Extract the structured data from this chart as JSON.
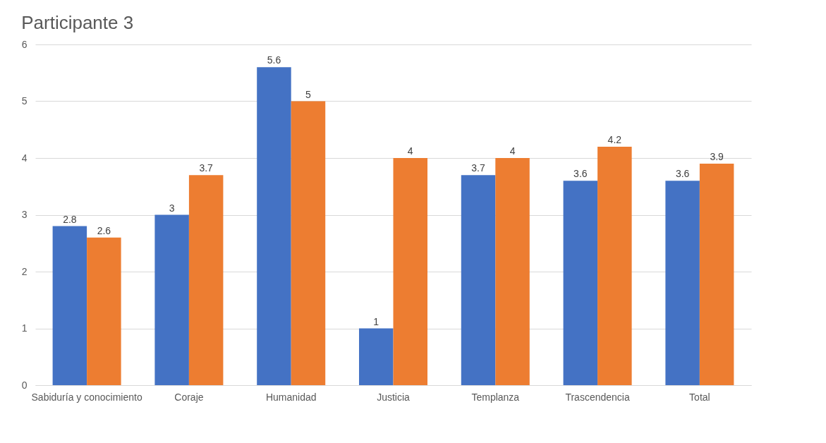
{
  "chart_data": {
    "type": "bar",
    "title": "Participante 3",
    "categories": [
      "Sabiduría y conocimiento",
      "Coraje",
      "Humanidad",
      "Justicia",
      "Templanza",
      "Trascendencia",
      "Total"
    ],
    "series": [
      {
        "color": "#4472c4",
        "values": [
          2.8,
          3,
          5.6,
          1,
          3.7,
          3.6,
          3.6
        ]
      },
      {
        "color": "#ed7d31",
        "values": [
          2.6,
          3.7,
          5,
          4,
          4,
          4.2,
          3.9
        ]
      }
    ],
    "ylim": [
      0,
      6
    ],
    "yticks": [
      0,
      1,
      2,
      3,
      4,
      5,
      6
    ],
    "grid": "y",
    "data_labels": true,
    "legend": false
  }
}
